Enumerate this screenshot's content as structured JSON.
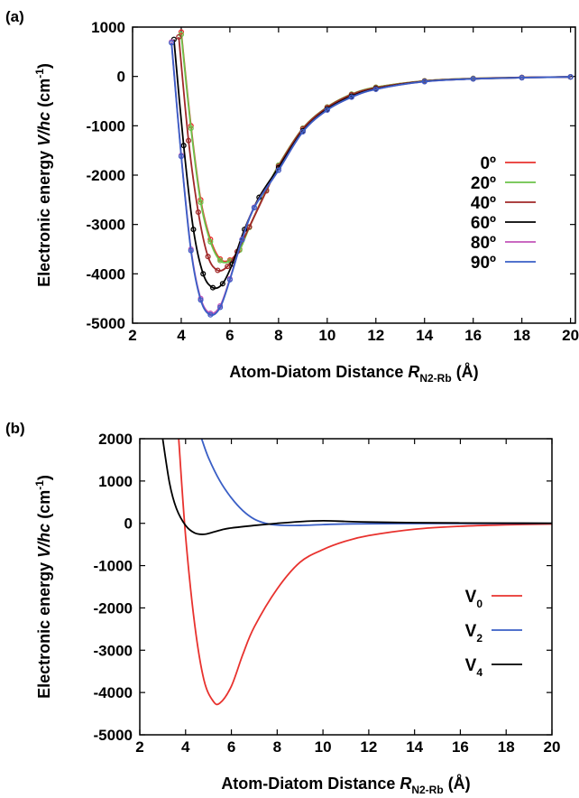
{
  "chart_data": [
    {
      "panel_label": "(a)",
      "type": "line",
      "xlabel": {
        "main": "Atom-Diatom Distance ",
        "italic": "R",
        "sub": "N2-Rb",
        "unit": " (Å)"
      },
      "ylabel": {
        "main": "Electronic energy ",
        "italic": "V/hc",
        "unit": " (cm",
        "sup": "-1",
        "close": ")"
      },
      "xlim": [
        2,
        20.2
      ],
      "ylim": [
        -5000,
        1000
      ],
      "xticks": [
        "2",
        "4",
        "6",
        "8",
        "10",
        "12",
        "14",
        "16",
        "18",
        "20"
      ],
      "yticks": [
        "1000",
        "0",
        "-1000",
        "-2000",
        "-3000",
        "-4000",
        "-5000"
      ],
      "grid": false,
      "legend_position": "right",
      "series": [
        {
          "name": "0º",
          "color": "#e8322e",
          "x": [
            4.0,
            4.4,
            4.8,
            5.2,
            5.6,
            6.0,
            6.4,
            6.8,
            7.5,
            8.0,
            9.0,
            10.0,
            11.0,
            12.0,
            14.0,
            16.0,
            18.0,
            20.0
          ],
          "y": [
            900,
            -1000,
            -2500,
            -3300,
            -3700,
            -3720,
            -3500,
            -3050,
            -2300,
            -1800,
            -1050,
            -620,
            -360,
            -220,
            -90,
            -40,
            -20,
            -10
          ]
        },
        {
          "name": "20º",
          "color": "#6cc24a",
          "x": [
            4.0,
            4.4,
            4.8,
            5.2,
            5.6,
            6.0,
            6.4,
            6.8,
            7.5,
            8.0,
            9.0,
            10.0,
            11.0,
            12.0,
            14.0,
            16.0,
            18.0,
            20.0
          ],
          "y": [
            850,
            -1050,
            -2550,
            -3350,
            -3730,
            -3740,
            -3520,
            -3060,
            -2300,
            -1800,
            -1050,
            -620,
            -360,
            -220,
            -90,
            -40,
            -20,
            -10
          ]
        },
        {
          "name": "40º",
          "color": "#a02828",
          "x": [
            3.9,
            4.3,
            4.7,
            5.1,
            5.5,
            5.9,
            6.3,
            6.8,
            7.5,
            8.0,
            9.0,
            10.0,
            11.0,
            12.0,
            14.0,
            16.0,
            18.0,
            20.0
          ],
          "y": [
            800,
            -1300,
            -2750,
            -3650,
            -3930,
            -3850,
            -3550,
            -3050,
            -2320,
            -1820,
            -1060,
            -630,
            -370,
            -230,
            -95,
            -45,
            -20,
            -10
          ]
        },
        {
          "name": "60º",
          "color": "#000000",
          "x": [
            3.7,
            4.1,
            4.5,
            4.9,
            5.3,
            5.7,
            6.1,
            6.6,
            7.2,
            8.0,
            9.0,
            10.0,
            11.0,
            12.0,
            14.0,
            16.0,
            18.0,
            20.0
          ],
          "y": [
            750,
            -1400,
            -3100,
            -4000,
            -4280,
            -4200,
            -3800,
            -3100,
            -2450,
            -1850,
            -1100,
            -660,
            -400,
            -250,
            -100,
            -50,
            -25,
            -10
          ]
        },
        {
          "name": "80º",
          "color": "#c254b8",
          "x": [
            3.6,
            4.0,
            4.4,
            4.8,
            5.2,
            5.6,
            6.0,
            6.5,
            7.0,
            8.0,
            9.0,
            10.0,
            11.0,
            12.0,
            14.0,
            16.0,
            18.0,
            20.0
          ],
          "y": [
            700,
            -1600,
            -3500,
            -4500,
            -4800,
            -4650,
            -4100,
            -3300,
            -2650,
            -1900,
            -1120,
            -680,
            -420,
            -260,
            -105,
            -50,
            -25,
            -10
          ]
        },
        {
          "name": "90º",
          "color": "#3a5fc6",
          "x": [
            3.6,
            4.0,
            4.4,
            4.8,
            5.2,
            5.6,
            6.0,
            6.5,
            7.0,
            8.0,
            9.0,
            10.0,
            11.0,
            12.0,
            14.0,
            16.0,
            18.0,
            20.0
          ],
          "y": [
            680,
            -1620,
            -3530,
            -4530,
            -4830,
            -4680,
            -4120,
            -3310,
            -2660,
            -1900,
            -1120,
            -680,
            -420,
            -260,
            -105,
            -50,
            -25,
            -10
          ]
        }
      ]
    },
    {
      "panel_label": "(b)",
      "type": "line",
      "xlabel": {
        "main": "Atom-Diatom Distance ",
        "italic": "R",
        "sub": "N2-Rb",
        "unit": " (Å)"
      },
      "ylabel": {
        "main": "Electronic energy ",
        "italic": "V/hc",
        "unit": " (cm",
        "sup": "-1",
        "close": ")"
      },
      "xlim": [
        2,
        20
      ],
      "ylim": [
        -5000,
        2000
      ],
      "xticks": [
        "2",
        "4",
        "6",
        "8",
        "10",
        "12",
        "14",
        "16",
        "18",
        "20"
      ],
      "yticks": [
        "2000",
        "1000",
        "0",
        "-1000",
        "-2000",
        "-3000",
        "-4000",
        "-5000"
      ],
      "grid": false,
      "legend_position": "right",
      "series": [
        {
          "name": "V",
          "sub": "0",
          "color": "#e8322e",
          "x": [
            3.7,
            4.0,
            4.4,
            4.8,
            5.2,
            5.5,
            6.0,
            6.5,
            7.0,
            8.0,
            9.0,
            10.0,
            11.0,
            12.0,
            14.0,
            16.0,
            18.0,
            20.0
          ],
          "y": [
            2000,
            -300,
            -2400,
            -3700,
            -4200,
            -4250,
            -3850,
            -3100,
            -2450,
            -1550,
            -920,
            -620,
            -420,
            -290,
            -140,
            -70,
            -35,
            -15
          ]
        },
        {
          "name": "V",
          "sub": "2",
          "color": "#3a5fc6",
          "x": [
            4.7,
            5.0,
            5.5,
            6.0,
            6.5,
            7.0,
            7.5,
            8.0,
            9.0,
            10.0,
            11.0,
            12.0,
            14.0,
            16.0,
            18.0,
            20.0
          ],
          "y": [
            2000,
            1550,
            1000,
            600,
            300,
            100,
            0,
            -40,
            -50,
            -30,
            -15,
            -10,
            -5,
            -3,
            -2,
            -1
          ]
        },
        {
          "name": "V",
          "sub": "4",
          "color": "#000000",
          "x": [
            3.0,
            3.3,
            3.6,
            4.0,
            4.4,
            4.8,
            5.2,
            5.6,
            6.0,
            7.0,
            8.0,
            9.0,
            10.0,
            11.0,
            12.0,
            14.0,
            16.0,
            18.0,
            20.0
          ],
          "y": [
            2000,
            950,
            350,
            -50,
            -230,
            -260,
            -210,
            -150,
            -110,
            -50,
            0,
            40,
            60,
            45,
            30,
            15,
            8,
            4,
            2
          ]
        }
      ]
    }
  ]
}
